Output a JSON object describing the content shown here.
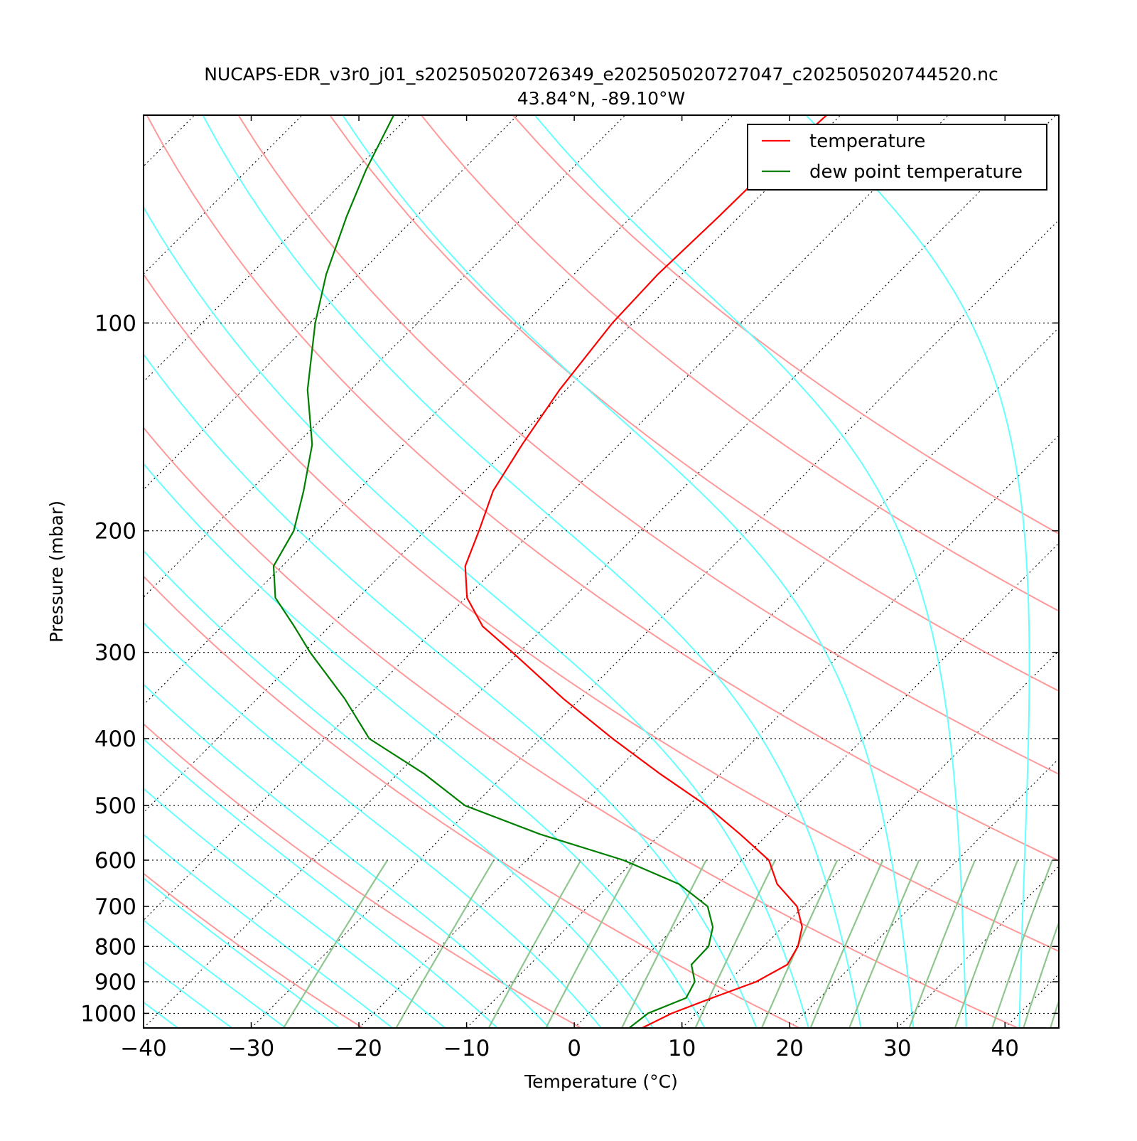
{
  "chart_data": {
    "type": "line",
    "subtype": "skew-t log-p diagram",
    "title": "NUCAPS-EDR_v3r0_j01_s202505020726349_e202505020727047_c202505020744520.nc",
    "subtitle": "43.84°N, -89.10°W",
    "xlabel": "Temperature (°C)",
    "ylabel": "Pressure (mbar)",
    "xlim": [
      -40,
      45
    ],
    "ylim": [
      1050,
      50
    ],
    "yscale": "log",
    "x_ticks": [
      "−40",
      "−30",
      "−20",
      "−10",
      "0",
      "10",
      "20",
      "30",
      "40"
    ],
    "y_ticks": [
      "100",
      "200",
      "300",
      "400",
      "500",
      "600",
      "700",
      "800",
      "900",
      "1000"
    ],
    "grid": "horizontal dotted at labeled pressures",
    "legend": {
      "position": "top-right",
      "entries": [
        "temperature",
        "dew point temperature"
      ]
    },
    "series": [
      {
        "name": "temperature",
        "color": "#ff0000",
        "pressure": [
          1050,
          1000,
          950,
          900,
          850,
          800,
          750,
          700,
          650,
          600,
          550,
          500,
          450,
          400,
          350,
          300,
          275,
          250,
          225,
          200,
          175,
          150,
          125,
          100,
          85,
          70,
          60,
          50
        ],
        "temperature": [
          6.3,
          7.7,
          10.0,
          12.6,
          13.9,
          13.2,
          11.8,
          9.4,
          5.5,
          2.5,
          -2.6,
          -8.4,
          -15.6,
          -23.3,
          -31.6,
          -40.6,
          -45.8,
          -49.9,
          -53.0,
          -55.0,
          -57.4,
          -59.0,
          -60.6,
          -61.9,
          -62.2,
          -61.9,
          -61.8,
          -61.3
        ]
      },
      {
        "name": "dew point temperature",
        "color": "#008000",
        "pressure": [
          1050,
          1000,
          950,
          900,
          850,
          800,
          750,
          700,
          650,
          600,
          550,
          500,
          450,
          400,
          350,
          300,
          275,
          250,
          225,
          200,
          175,
          150,
          125,
          100,
          85,
          70,
          60,
          50
        ],
        "temperature": [
          5.1,
          5.5,
          7.6,
          6.9,
          5.0,
          4.9,
          3.5,
          1.1,
          -3.6,
          -11.0,
          -21.2,
          -30.8,
          -37.5,
          -45.9,
          -51.9,
          -59.4,
          -63.3,
          -67.7,
          -70.8,
          -72.2,
          -75.0,
          -78.5,
          -84.0,
          -89.5,
          -93.0,
          -96.5,
          -99.0,
          -101.5
        ]
      }
    ],
    "background_lines": {
      "dry_adiabats": {
        "color": "#ff9999",
        "theta_K": [
          230,
          250,
          270,
          290,
          310,
          330,
          350,
          370,
          390,
          410,
          430
        ]
      },
      "moist_adiabats": {
        "color": "#66ffff",
        "theta_w_C": [
          -40,
          -35,
          -30,
          -25,
          -20,
          -15,
          -10,
          -5,
          0,
          5,
          10,
          15,
          20,
          25,
          30,
          35,
          40
        ]
      },
      "mixing_ratio_lines": {
        "color": "#8fc68f",
        "w_g_per_kg": [
          0.4,
          1,
          2,
          3,
          5,
          8,
          12,
          16,
          20,
          28,
          36,
          44,
          52,
          60
        ]
      },
      "isotherms": {
        "color": "#000000",
        "style": "dotted"
      }
    }
  }
}
